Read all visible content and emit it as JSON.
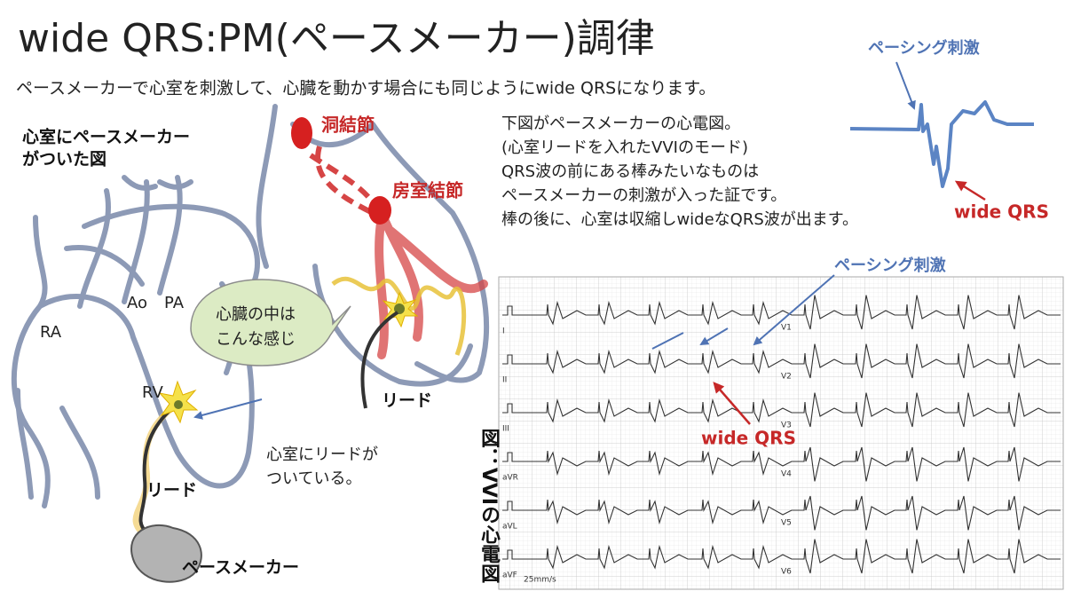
{
  "title": "wide QRS:PM(ペースメーカー)調律",
  "subtitle": "ペースメーカーで心室を刺激して、心臓を動かす場合にも同じようにwide QRSになります。",
  "heart_diagram": {
    "caption": [
      "心室にペースメーカー",
      "がついた図"
    ],
    "labels": {
      "ra": "RA",
      "ao": "Ao",
      "pa": "PA",
      "rv": "RV",
      "lead": "リード",
      "pacemaker": "ペースメーカー"
    },
    "callout": [
      "心臓の中は",
      "こんな感じ"
    ],
    "annotation": [
      "心室にリードが",
      "ついている。"
    ]
  },
  "conduction_diagram": {
    "sa_node": "洞結節",
    "av_node": "房室結節",
    "lead": "リード"
  },
  "explanation": [
    "下図がペースメーカーの心電図。",
    "(心室リードを入れたVVIのモード)",
    "QRS波の前にある棒みたいなものは",
    "ペースメーカーの刺激が入った証です。",
    "棒の後に、心室は収縮しwideなQRS波が出ます。"
  ],
  "pacing_example": {
    "spike_label": "ペーシング刺激",
    "qrs_label": "wide QRS"
  },
  "ecg": {
    "caption": "図：VVIの心電図",
    "spike_label": "ペーシング刺激",
    "qrs_label": "wide QRS",
    "limb_leads": [
      "I",
      "II",
      "III",
      "aVR",
      "aVL",
      "aVF"
    ],
    "chest_leads": [
      "V1",
      "V2",
      "V3",
      "V4",
      "V5",
      "V6"
    ],
    "footer": "25mm/s"
  }
}
